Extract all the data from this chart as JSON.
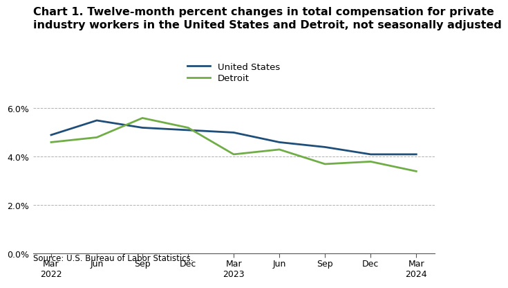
{
  "title_line1": "Chart 1. Twelve-month percent changes in total compensation for private",
  "title_line2": "industry workers in the United States and Detroit, not seasonally adjusted",
  "x_labels": [
    "Mar\n2022",
    "Jun",
    "Sep",
    "Dec",
    "Mar\n2023",
    "Jun",
    "Sep",
    "Dec",
    "Mar\n2024"
  ],
  "us_values": [
    4.9,
    5.5,
    5.2,
    5.1,
    5.0,
    4.6,
    4.4,
    4.1,
    4.1
  ],
  "detroit_values": [
    4.6,
    4.8,
    5.6,
    5.2,
    4.1,
    4.3,
    3.7,
    3.8,
    3.4
  ],
  "us_color": "#1f4e79",
  "detroit_color": "#70ad47",
  "us_label": "United States",
  "detroit_label": "Detroit",
  "ylim_min": 0.0,
  "ylim_max": 0.068,
  "yticks": [
    0.0,
    0.02,
    0.04,
    0.06
  ],
  "ytick_labels": [
    "0.0%",
    "2.0%",
    "4.0%",
    "6.0%"
  ],
  "source": "Source: U.S. Bureau of Labor Statistics.",
  "background_color": "#ffffff",
  "grid_color": "#b0b0b0",
  "title_fontsize": 11.5,
  "legend_fontsize": 9.5,
  "tick_fontsize": 9,
  "source_fontsize": 8.5,
  "line_width": 2.0
}
